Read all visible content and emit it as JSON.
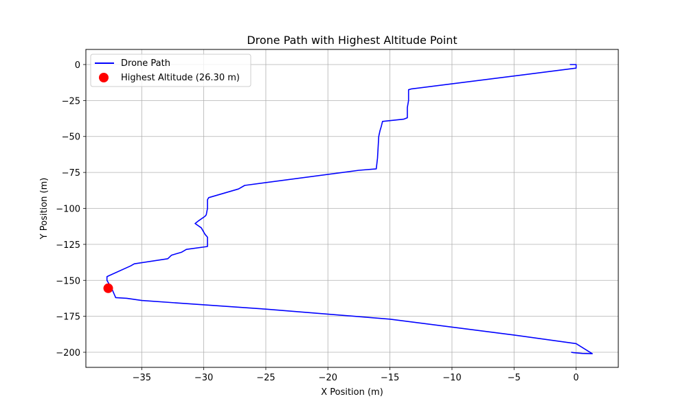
{
  "chart_data": {
    "type": "line",
    "title": "Drone Path with Highest Altitude Point",
    "xlabel": "X Position (m)",
    "ylabel": "Y Position (m)",
    "xlim": [
      -39.5,
      3.4
    ],
    "ylim": [
      -210.5,
      10.5
    ],
    "x_ticks": [
      -35,
      -30,
      -25,
      -20,
      -15,
      -10,
      -5,
      0
    ],
    "x_tick_labels": [
      "−35",
      "−30",
      "−25",
      "−20",
      "−15",
      "−10",
      "−5",
      "0"
    ],
    "y_ticks": [
      0,
      -25,
      -50,
      -75,
      -100,
      -125,
      -150,
      -175,
      -200
    ],
    "y_tick_labels": [
      "0",
      "−25",
      "−50",
      "−75",
      "−100",
      "−125",
      "−150",
      "−175",
      "−200"
    ],
    "grid": true,
    "legend_position": "top-left",
    "series": [
      {
        "name": "Drone Path",
        "color": "#0000ff",
        "x": [
          -0.5,
          0.0,
          0.0,
          -13.3,
          -13.5,
          -13.5,
          -13.6,
          -13.6,
          -13.9,
          -15.6,
          -15.7,
          -15.8,
          -15.9,
          -16.0,
          -16.1,
          -17.5,
          -26.7,
          -27.2,
          -29.6,
          -29.7,
          -29.7,
          -29.8,
          -29.9,
          -30.4,
          -30.7,
          -30.2,
          -29.9,
          -29.7,
          -29.7,
          -31.4,
          -31.8,
          -32.6,
          -32.9,
          -35.6,
          -35.9,
          -37.7,
          -37.8,
          -37.8,
          -37.6,
          -37.4,
          -37.1,
          -36.2,
          -35.0,
          -25.0,
          -15.0,
          -5.0,
          0.0,
          1.3,
          0.5,
          -0.2,
          -0.4
        ],
        "y": [
          0.0,
          0.0,
          -2.5,
          -17.0,
          -17.5,
          -25.0,
          -30.0,
          -37.0,
          -38.0,
          -39.5,
          -43.0,
          -46.0,
          -50.0,
          -65.0,
          -72.5,
          -73.5,
          -84.0,
          -86.5,
          -92.5,
          -94.0,
          -100.0,
          -104.5,
          -105.5,
          -108.5,
          -110.5,
          -113.5,
          -118.0,
          -120.0,
          -126.5,
          -128.5,
          -130.5,
          -132.5,
          -135.0,
          -138.5,
          -140.0,
          -147.0,
          -147.5,
          -150.0,
          -153.0,
          -156.0,
          -162.0,
          -162.5,
          -164.0,
          -170.0,
          -177.0,
          -188.0,
          -194.0,
          -201.0,
          -200.8,
          -200.3,
          -200.0
        ]
      }
    ],
    "highlight_point": {
      "name": "Highest Altitude (26.30 m)",
      "color": "#ff0000",
      "x": -37.7,
      "y": -155.5
    }
  }
}
